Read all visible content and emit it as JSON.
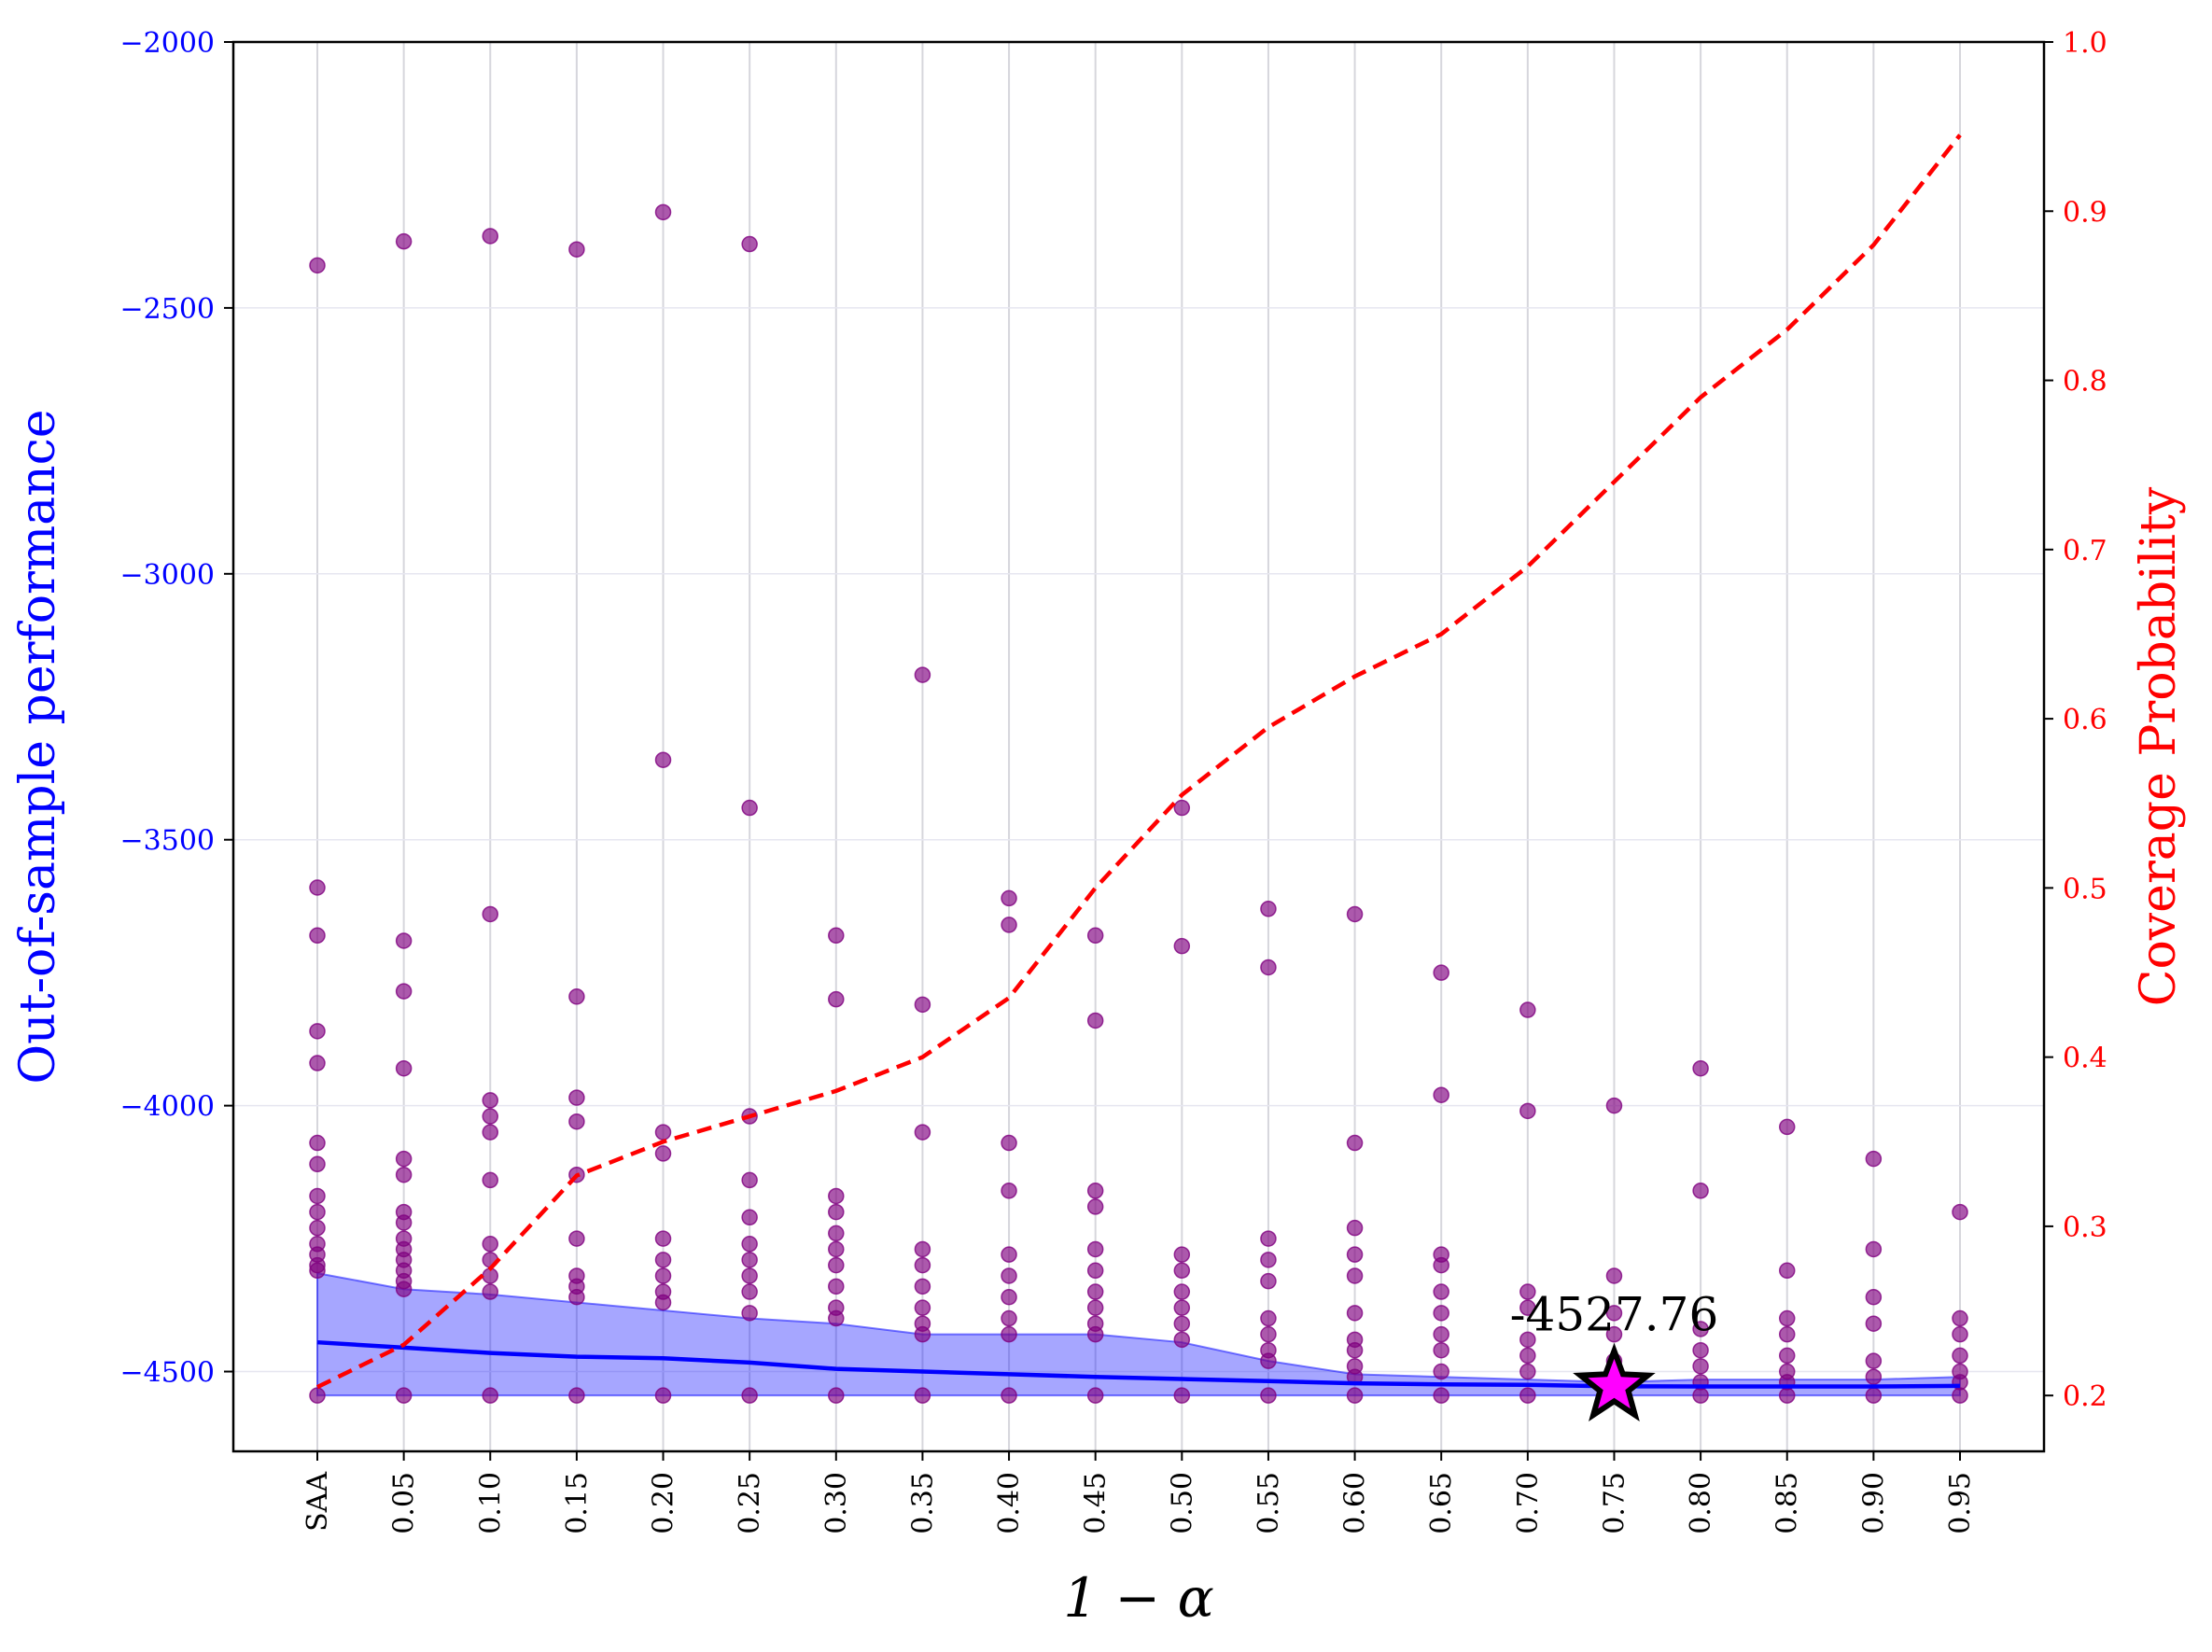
{
  "chart_data": {
    "type": "scatter",
    "categories": [
      "SAA",
      "0.05",
      "0.10",
      "0.15",
      "0.20",
      "0.25",
      "0.30",
      "0.35",
      "0.40",
      "0.45",
      "0.50",
      "0.55",
      "0.60",
      "0.65",
      "0.70",
      "0.75",
      "0.80",
      "0.85",
      "0.90",
      "0.95"
    ],
    "xlabel": "1 − α",
    "ylabel_left": "Out-of-sample performance",
    "ylabel_right": "Coverage Probability",
    "ylim_left": [
      -4650,
      -2000
    ],
    "ylim_right": [
      0.167,
      1.0
    ],
    "yticks_left": [
      -2000,
      -2500,
      -3000,
      -3500,
      -4000,
      -4500
    ],
    "yticks_right": [
      1.0,
      0.9,
      0.8,
      0.7,
      0.6,
      0.5,
      0.4,
      0.3,
      0.2
    ],
    "grid": true,
    "series": [
      {
        "kind": "scatter",
        "color": "#800080",
        "points": [
          [
            [
              -2420,
              -3590,
              -3680,
              -3860,
              -3920,
              -4070,
              -4110,
              -4170,
              -4200,
              -4230,
              -4260,
              -4280,
              -4300,
              -4310,
              -4545
            ]
          ],
          [
            [
              -2375,
              -3690,
              -3785,
              -3930,
              -4100,
              -4130,
              -4200,
              -4220,
              -4250,
              -4270,
              -4290,
              -4310,
              -4330,
              -4345,
              -4545
            ]
          ],
          [
            [
              -2365,
              -3640,
              -3990,
              -4020,
              -4050,
              -4140,
              -4260,
              -4290,
              -4320,
              -4350,
              -4545
            ]
          ],
          [
            [
              -2390,
              -3795,
              -3985,
              -4030,
              -4130,
              -4250,
              -4320,
              -4340,
              -4360,
              -4545
            ]
          ],
          [
            [
              -2320,
              -3350,
              -4050,
              -4090,
              -4250,
              -4290,
              -4320,
              -4350,
              -4370,
              -4545
            ]
          ],
          [
            [
              -2380,
              -3440,
              -4020,
              -4140,
              -4210,
              -4260,
              -4290,
              -4320,
              -4350,
              -4390,
              -4545
            ]
          ],
          [
            [
              -3680,
              -3800,
              -4170,
              -4200,
              -4240,
              -4270,
              -4300,
              -4340,
              -4380,
              -4400,
              -4545
            ]
          ],
          [
            [
              -3190,
              -3810,
              -4050,
              -4270,
              -4300,
              -4340,
              -4380,
              -4410,
              -4430,
              -4545
            ]
          ],
          [
            [
              -3610,
              -3660,
              -4070,
              -4160,
              -4280,
              -4320,
              -4360,
              -4400,
              -4430,
              -4545
            ]
          ],
          [
            [
              -3680,
              -3840,
              -4160,
              -4190,
              -4270,
              -4310,
              -4350,
              -4380,
              -4410,
              -4430,
              -4545
            ]
          ],
          [
            [
              -3440,
              -3700,
              -4280,
              -4310,
              -4350,
              -4380,
              -4410,
              -4440,
              -4545
            ]
          ],
          [
            [
              -3630,
              -3740,
              -4250,
              -4290,
              -4330,
              -4400,
              -4430,
              -4460,
              -4480,
              -4545
            ]
          ],
          [
            [
              -3640,
              -4070,
              -4230,
              -4280,
              -4320,
              -4390,
              -4440,
              -4460,
              -4490,
              -4510,
              -4545
            ]
          ],
          [
            [
              -3750,
              -3980,
              -4280,
              -4300,
              -4350,
              -4390,
              -4430,
              -4460,
              -4500,
              -4545
            ]
          ],
          [
            [
              -3820,
              -4010,
              -4350,
              -4380,
              -4440,
              -4470,
              -4500,
              -4545
            ]
          ],
          [
            [
              -4000,
              -4320,
              -4390,
              -4430,
              -4480,
              -4510,
              -4545
            ]
          ],
          [
            [
              -3930,
              -4160,
              -4420,
              -4460,
              -4490,
              -4520,
              -4545
            ]
          ],
          [
            [
              -4040,
              -4310,
              -4400,
              -4430,
              -4470,
              -4500,
              -4520,
              -4545
            ]
          ],
          [
            [
              -4100,
              -4270,
              -4360,
              -4410,
              -4480,
              -4510,
              -4545
            ]
          ],
          [
            [
              -4200,
              -4400,
              -4430,
              -4470,
              -4500,
              -4520,
              -4545
            ]
          ]
        ]
      },
      {
        "kind": "band",
        "color": "#0000ff",
        "upper": [
          -4315,
          -4345,
          -4355,
          -4370,
          -4385,
          -4400,
          -4410,
          -4430,
          -4430,
          -4430,
          -4445,
          -4480,
          -4505,
          -4510,
          -4515,
          -4520,
          -4515,
          -4515,
          -4515,
          -4510
        ],
        "lower": [
          -4545,
          -4545,
          -4545,
          -4545,
          -4545,
          -4545,
          -4545,
          -4545,
          -4545,
          -4545,
          -4545,
          -4545,
          -4545,
          -4545,
          -4545,
          -4545,
          -4545,
          -4545,
          -4545,
          -4545
        ]
      },
      {
        "kind": "line",
        "color": "#0000ff",
        "values": [
          -4445,
          -4455,
          -4465,
          -4472,
          -4475,
          -4483,
          -4495,
          -4500,
          -4505,
          -4510,
          -4514,
          -4518,
          -4522,
          -4524,
          -4525,
          -4527.76,
          -4528,
          -4528,
          -4528,
          -4527
        ]
      },
      {
        "kind": "dashed-line",
        "axis": "right",
        "color": "#ff0000",
        "values": [
          0.205,
          0.23,
          0.275,
          0.33,
          0.35,
          0.365,
          0.38,
          0.4,
          0.435,
          0.5,
          0.555,
          0.595,
          0.625,
          0.65,
          0.69,
          0.74,
          0.79,
          0.83,
          0.88,
          0.945
        ]
      }
    ],
    "annotation": {
      "text": "-4527.76",
      "category": "0.75",
      "value": -4527.76,
      "marker": "star",
      "marker_color": "#ff00ff"
    },
    "colors": {
      "left_axis": "#0000ff",
      "right_axis": "#ff0000",
      "grid": "#cfcfe0"
    }
  }
}
